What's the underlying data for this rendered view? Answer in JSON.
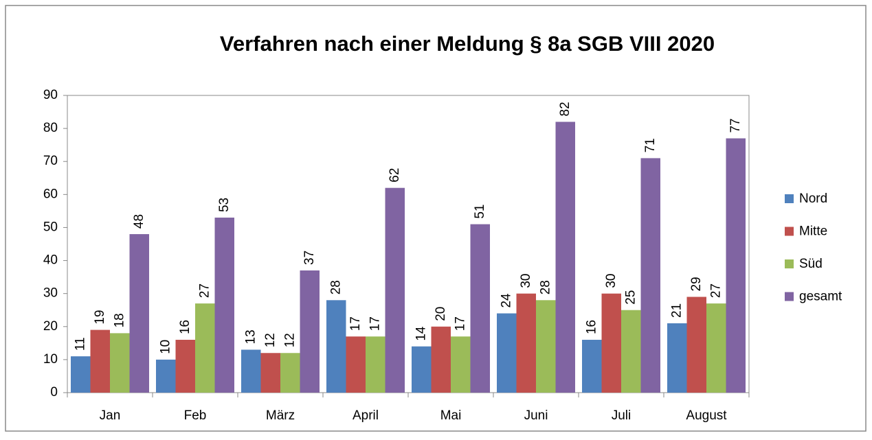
{
  "chart_data": {
    "type": "bar",
    "title": "Verfahren nach einer Meldung § 8a SGB VIII 2020",
    "categories": [
      "Jan",
      "Feb",
      "März",
      "April",
      "Mai",
      "Juni",
      "Juli",
      "August"
    ],
    "series": [
      {
        "name": "Nord",
        "color": "#4f81bd",
        "values": [
          11,
          10,
          13,
          28,
          14,
          24,
          16,
          21
        ]
      },
      {
        "name": "Mitte",
        "color": "#c0504d",
        "values": [
          19,
          16,
          12,
          17,
          20,
          30,
          30,
          29
        ]
      },
      {
        "name": "Süd",
        "color": "#9bbb59",
        "values": [
          18,
          27,
          12,
          17,
          17,
          28,
          25,
          27
        ]
      },
      {
        "name": "gesamt",
        "color": "#8064a2",
        "values": [
          48,
          53,
          37,
          62,
          51,
          82,
          71,
          77
        ]
      }
    ],
    "ylim": [
      0,
      90
    ],
    "yticks": [
      0,
      10,
      20,
      30,
      40,
      50,
      60,
      70,
      80,
      90
    ],
    "grid": false,
    "legend": "right"
  }
}
